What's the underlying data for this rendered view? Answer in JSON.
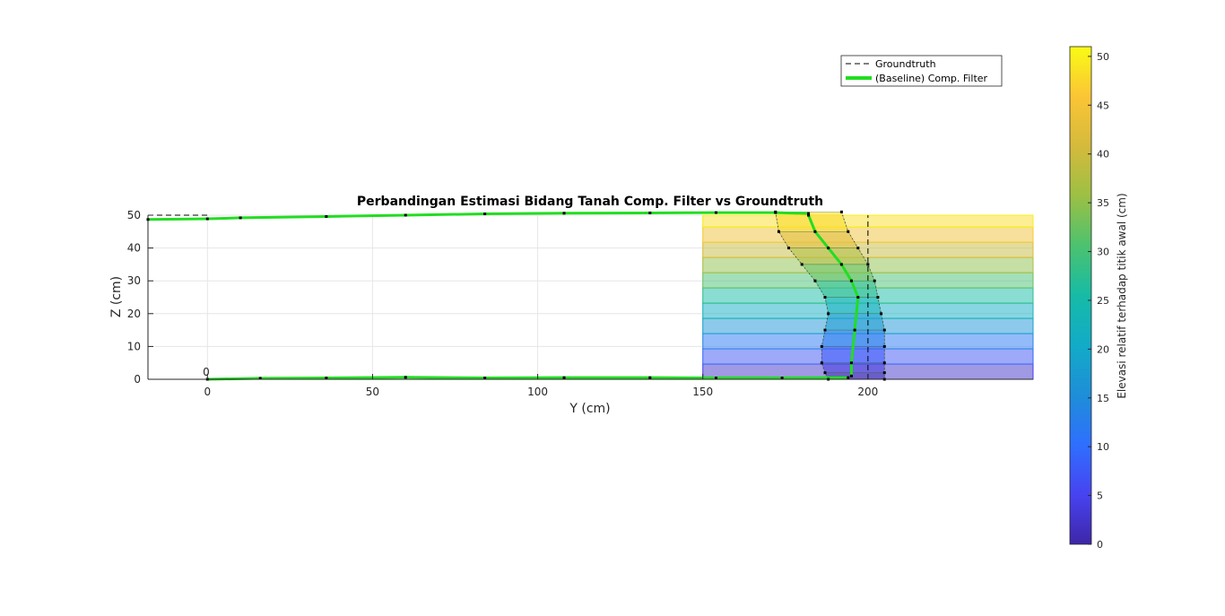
{
  "chart_data": {
    "type": "line",
    "title": "Perbandingan Estimasi Bidang Tanah Comp. Filter vs Groundtruth",
    "xlabel": "Y (cm)",
    "ylabel": "Z (cm)",
    "xlim": [
      -18,
      250
    ],
    "ylim": [
      0,
      50
    ],
    "xticks": [
      0,
      50,
      100,
      150,
      200
    ],
    "yticks": [
      0,
      10,
      20,
      30,
      40,
      50
    ],
    "grid": true,
    "legend_position": "top-right",
    "annotation": {
      "text": "0",
      "x": 0,
      "y": 2
    },
    "series": [
      {
        "name": "Groundtruth",
        "style": "dashed",
        "color": "#000000",
        "segments": [
          {
            "x": [
              -18,
              150
            ],
            "y": [
              0,
              0
            ]
          },
          {
            "x": [
              200,
              200
            ],
            "y": [
              0,
              50
            ]
          },
          {
            "x": [
              -18,
              0
            ],
            "y": [
              50,
              50
            ]
          }
        ]
      },
      {
        "name": "(Baseline) Comp. Filter",
        "style": "solid",
        "color": "#22dd22",
        "segments": [
          {
            "x": [
              0,
              16,
              36,
              60,
              84,
              108,
              134,
              154,
              174,
              194
            ],
            "y": [
              0,
              0.3,
              0.4,
              0.6,
              0.4,
              0.5,
              0.5,
              0.4,
              0.4,
              0.5
            ]
          },
          {
            "x": [
              -18,
              0,
              10,
              36,
              60,
              84,
              108,
              134,
              154,
              172,
              182
            ],
            "y": [
              48.7,
              48.9,
              49.2,
              49.6,
              50.0,
              50.4,
              50.6,
              50.7,
              50.8,
              50.8,
              50.5
            ]
          },
          {
            "x": [
              182,
              184,
              188,
              192,
              195,
              197,
              196,
              195,
              195
            ],
            "y": [
              50,
              45,
              40,
              35,
              30,
              25,
              15,
              5,
              1
            ]
          }
        ]
      }
    ],
    "surface": {
      "y_min": 150,
      "y_max": 250,
      "z_step": 4.64,
      "band_count": 11,
      "left_edge": {
        "x": [
          172,
          173,
          176,
          180,
          184,
          187,
          188,
          187,
          186,
          186,
          187,
          188
        ],
        "z": [
          51,
          45,
          40,
          35,
          30,
          25,
          20,
          15,
          10,
          5,
          2,
          0
        ]
      },
      "right_edge": {
        "x": [
          192,
          194,
          197,
          200,
          202,
          203,
          204,
          205,
          205,
          205,
          205,
          205
        ],
        "z": [
          51,
          45,
          40,
          35,
          30,
          25,
          20,
          15,
          10,
          5,
          2,
          0
        ]
      }
    },
    "colorbar": {
      "label": "Elevasi relatif terhadap titik awal (cm)",
      "min": 0,
      "max": 51,
      "ticks": [
        0,
        5,
        10,
        15,
        20,
        25,
        30,
        35,
        40,
        45,
        50
      ],
      "colormap": [
        "#3e26a8",
        "#4743f1",
        "#2f6ffe",
        "#1e8ed8",
        "#12abc8",
        "#16bba6",
        "#4cc26f",
        "#9cc044",
        "#d5ba3c",
        "#fbc535",
        "#f9fb15"
      ]
    }
  }
}
